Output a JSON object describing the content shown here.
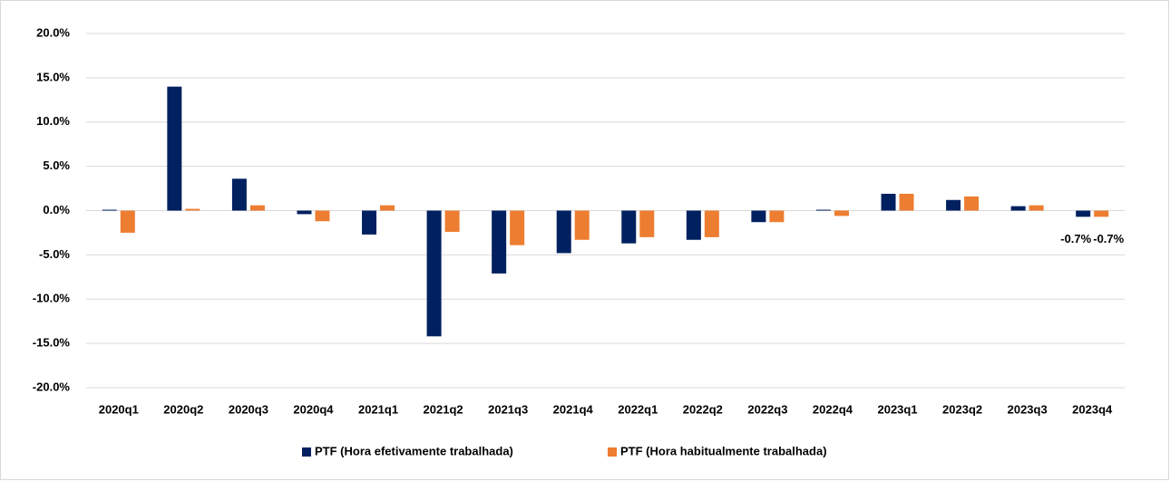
{
  "chart_data": {
    "type": "bar",
    "categories": [
      "2020q1",
      "2020q2",
      "2020q3",
      "2020q4",
      "2021q1",
      "2021q2",
      "2021q3",
      "2021q4",
      "2022q1",
      "2022q2",
      "2022q3",
      "2022q4",
      "2023q1",
      "2023q2",
      "2023q3",
      "2023q4"
    ],
    "series": [
      {
        "name": "PTF (Hora efetivamente trabalhada)",
        "color": "#002060",
        "values": [
          0.1,
          14.0,
          3.6,
          -0.4,
          -2.7,
          -14.2,
          -7.1,
          -4.8,
          -3.7,
          -3.3,
          -1.3,
          0.1,
          1.9,
          1.2,
          0.5,
          -0.7
        ],
        "value_labels": [
          null,
          null,
          null,
          null,
          null,
          null,
          null,
          null,
          null,
          null,
          null,
          null,
          null,
          null,
          null,
          "-0.7%"
        ]
      },
      {
        "name": "PTF (Hora habitualmente trabalhada)",
        "color": "#ED7D31",
        "values": [
          -2.5,
          0.2,
          0.6,
          -1.2,
          0.6,
          -2.4,
          -3.9,
          -3.3,
          -3.0,
          -3.0,
          -1.3,
          -0.6,
          1.9,
          1.6,
          0.6,
          -0.7
        ],
        "value_labels": [
          null,
          null,
          null,
          null,
          null,
          null,
          null,
          null,
          null,
          null,
          null,
          null,
          null,
          null,
          null,
          "-0.7%"
        ]
      }
    ],
    "ylim": [
      -20,
      20
    ],
    "yticks": [
      {
        "value": -20,
        "label": "-20.0%"
      },
      {
        "value": -15,
        "label": "-15.0%"
      },
      {
        "value": -10,
        "label": "-10.0%"
      },
      {
        "value": -5,
        "label": "-5.0%"
      },
      {
        "value": 0,
        "label": "0.0%"
      },
      {
        "value": 5,
        "label": "5.0%"
      },
      {
        "value": 10,
        "label": "10.0%"
      },
      {
        "value": 15,
        "label": "15.0%"
      },
      {
        "value": 20,
        "label": "20.0%"
      }
    ],
    "grid": true,
    "legend": "bottom"
  }
}
